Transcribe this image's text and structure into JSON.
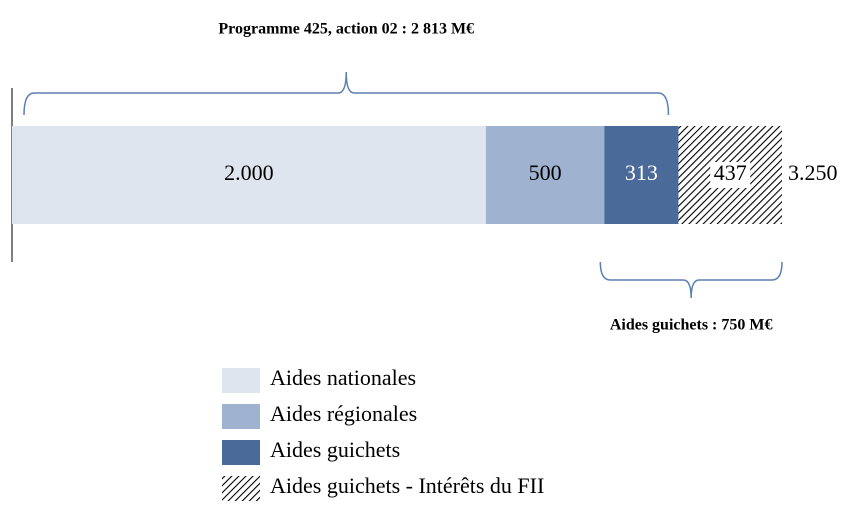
{
  "chart_data": {
    "type": "stacked-bar",
    "annotations": [
      "Programme 425, action 02 : 2 813 M€",
      "Aides guichets : 750 M€"
    ],
    "series": [
      {
        "name": "Aides nationales",
        "color": "#dfe5ee",
        "values": [
          2000
        ],
        "value_labels": [
          "2.000"
        ]
      },
      {
        "name": "Aides régionales",
        "color": "#9fb3d1",
        "values": [
          500
        ],
        "value_labels": [
          "500"
        ]
      },
      {
        "name": "Aides guichets",
        "color": "#4a6b9a",
        "values": [
          313
        ],
        "value_labels": [
          "313"
        ]
      },
      {
        "name": "Aides guichets - Intérêts du FII",
        "color": "#000000",
        "hatch": true,
        "values": [
          437
        ],
        "value_labels": [
          "437"
        ]
      }
    ],
    "total": 3250,
    "total_label": "3.250"
  }
}
